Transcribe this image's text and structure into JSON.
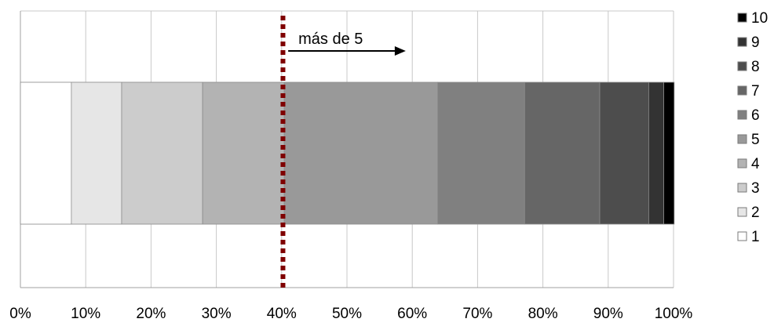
{
  "chart_data": {
    "type": "bar",
    "orientation": "horizontal",
    "stacked": true,
    "categories": [
      ""
    ],
    "series": [
      {
        "name": "1",
        "values": [
          7.8
        ],
        "color": "#ffffff"
      },
      {
        "name": "2",
        "values": [
          7.7
        ],
        "color": "#e6e6e6"
      },
      {
        "name": "3",
        "values": [
          12.4
        ],
        "color": "#cccccc"
      },
      {
        "name": "4",
        "values": [
          12.5
        ],
        "color": "#b3b3b3"
      },
      {
        "name": "5",
        "values": [
          23.5
        ],
        "color": "#999999"
      },
      {
        "name": "6",
        "values": [
          13.3
        ],
        "color": "#808080"
      },
      {
        "name": "7",
        "values": [
          11.5
        ],
        "color": "#666666"
      },
      {
        "name": "8",
        "values": [
          7.5
        ],
        "color": "#4d4d4d"
      },
      {
        "name": "9",
        "values": [
          2.3
        ],
        "color": "#333333"
      },
      {
        "name": "10",
        "values": [
          1.6
        ],
        "color": "#000000"
      }
    ],
    "xlim": [
      0,
      100
    ],
    "x_ticks": [
      "0%",
      "10%",
      "20%",
      "30%",
      "40%",
      "50%",
      "60%",
      "70%",
      "80%",
      "90%",
      "100%"
    ],
    "title": "",
    "xlabel": "",
    "ylabel": "",
    "grid": true,
    "legend_position": "right",
    "annotations": [
      {
        "type": "vertical-dashed-line",
        "x": 40.2,
        "color": "#7f0000"
      },
      {
        "type": "arrow-label",
        "text": "más de 5",
        "x_from": 41,
        "x_to": 59
      }
    ]
  }
}
